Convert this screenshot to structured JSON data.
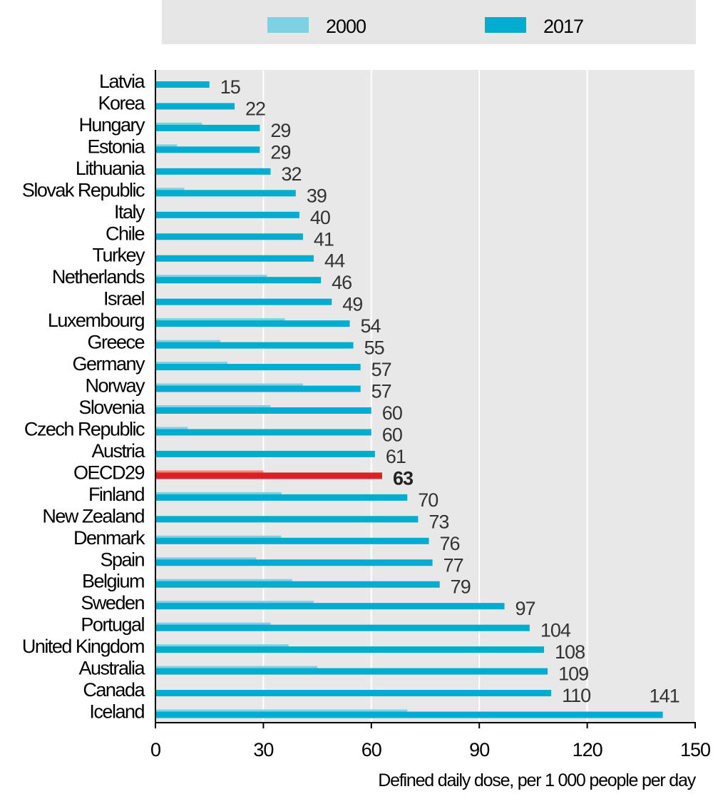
{
  "colors": {
    "s2000": "#7ed1e3",
    "s2017": "#00acd0",
    "oecd2000": "#f08a78",
    "oecd2017": "#dc1f26",
    "plot_bg": "#e8e8e8",
    "legend_bg": "#e6e6e6",
    "grid": "#ffffff"
  },
  "legend": {
    "position": "top",
    "items": [
      {
        "label": "2000",
        "color": "#7ed1e3"
      },
      {
        "label": "2017",
        "color": "#00acd0"
      }
    ]
  },
  "chart_data": {
    "type": "bar",
    "orientation": "horizontal",
    "highlight_category": "OECD29",
    "categories": [
      "Latvia",
      "Korea",
      "Hungary",
      "Estonia",
      "Lithuania",
      "Slovak Republic",
      "Italy",
      "Chile",
      "Turkey",
      "Netherlands",
      "Israel",
      "Luxembourg",
      "Greece",
      "Germany",
      "Norway",
      "Slovenia",
      "Czech Republic",
      "Austria",
      "OECD29",
      "Finland",
      "New Zealand",
      "Denmark",
      "Spain",
      "Belgium",
      "Sweden",
      "Portugal",
      "United Kingdom",
      "Australia",
      "Canada",
      "Iceland"
    ],
    "series": [
      {
        "name": "2000",
        "values": [
          null,
          null,
          13,
          6,
          null,
          8,
          null,
          null,
          null,
          31,
          null,
          36,
          18,
          20,
          41,
          32,
          9,
          null,
          30,
          35,
          null,
          35,
          28,
          38,
          44,
          32,
          37,
          45,
          null,
          70
        ]
      },
      {
        "name": "2017",
        "values": [
          15,
          22,
          29,
          29,
          32,
          39,
          40,
          41,
          44,
          46,
          49,
          54,
          55,
          57,
          57,
          60,
          60,
          61,
          63,
          70,
          73,
          76,
          77,
          79,
          97,
          104,
          108,
          109,
          110,
          141
        ]
      }
    ],
    "data_labels": [
      "15",
      "22",
      "29",
      "29",
      "32",
      "39",
      "40",
      "41",
      "44",
      "46",
      "49",
      "54",
      "55",
      "57",
      "57",
      "60",
      "60",
      "61",
      "63",
      "70",
      "73",
      "76",
      "77",
      "79",
      "97",
      "104",
      "108",
      "109",
      "110",
      "141"
    ],
    "xlabel": "Defined daily dose, per 1 000 people per day",
    "xlim": [
      0,
      150
    ],
    "xticks": [
      0,
      30,
      60,
      90,
      120,
      150
    ],
    "grid": true
  }
}
